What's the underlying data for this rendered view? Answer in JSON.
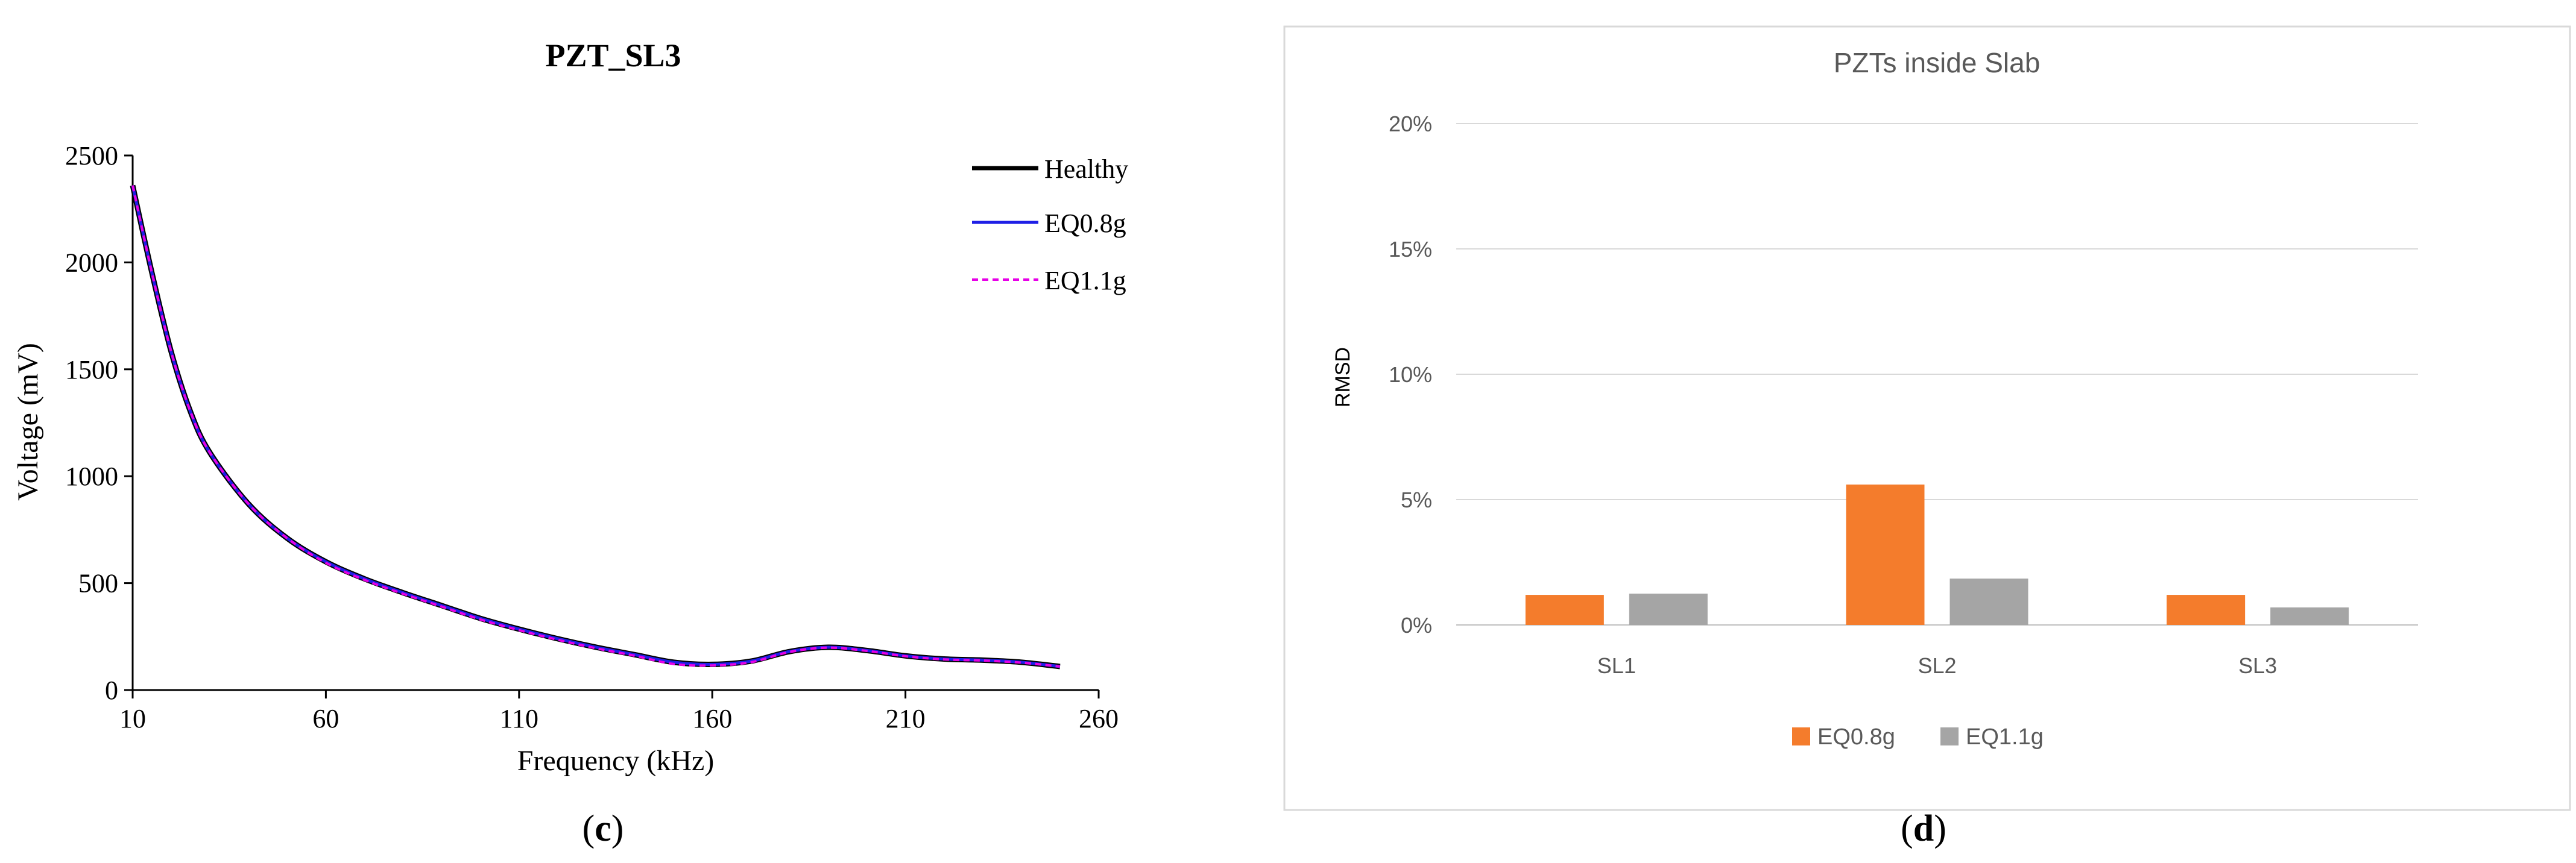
{
  "chart_data": [
    {
      "type": "line",
      "title": "PZT_SL3",
      "xlabel": "Frequency (kHz)",
      "ylabel": "Voltage (mV)",
      "xlim": [
        10,
        260
      ],
      "ylim": [
        0,
        2500
      ],
      "xticks": [
        "10",
        "60",
        "110",
        "160",
        "210",
        "260"
      ],
      "yticks": [
        "0",
        "500",
        "1000",
        "1500",
        "2000",
        "2500"
      ],
      "grid": false,
      "legend_position": "top-right",
      "series": [
        {
          "name": "Healthy",
          "color": "#000000",
          "style": "solid",
          "x": [
            10,
            15,
            20,
            25,
            30,
            40,
            50,
            60,
            70,
            80,
            90,
            100,
            110,
            120,
            130,
            140,
            150,
            160,
            170,
            180,
            190,
            200,
            210,
            220,
            230,
            240,
            250
          ],
          "y": [
            2360,
            1950,
            1580,
            1300,
            1110,
            870,
            710,
            600,
            520,
            455,
            395,
            335,
            285,
            240,
            200,
            165,
            130,
            120,
            135,
            180,
            200,
            185,
            160,
            145,
            140,
            130,
            110
          ]
        },
        {
          "name": "EQ0.8g",
          "color": "#1f1fe6",
          "style": "solid",
          "x": [
            10,
            15,
            20,
            25,
            30,
            40,
            50,
            60,
            70,
            80,
            90,
            100,
            110,
            120,
            130,
            140,
            150,
            160,
            170,
            180,
            190,
            200,
            210,
            220,
            230,
            240,
            250
          ],
          "y": [
            2360,
            1950,
            1580,
            1300,
            1110,
            870,
            710,
            600,
            520,
            455,
            395,
            335,
            285,
            240,
            200,
            165,
            130,
            120,
            135,
            180,
            200,
            185,
            160,
            145,
            140,
            130,
            110
          ]
        },
        {
          "name": "EQ1.1g",
          "color": "#e600e6",
          "style": "dashed",
          "x": [
            10,
            15,
            20,
            25,
            30,
            40,
            50,
            60,
            70,
            80,
            90,
            100,
            110,
            120,
            130,
            140,
            150,
            160,
            170,
            180,
            190,
            200,
            210,
            220,
            230,
            240,
            250
          ],
          "y": [
            2360,
            1950,
            1580,
            1300,
            1110,
            870,
            710,
            595,
            515,
            450,
            390,
            330,
            280,
            235,
            195,
            160,
            122,
            115,
            130,
            178,
            198,
            183,
            158,
            143,
            138,
            128,
            110
          ]
        }
      ]
    },
    {
      "type": "bar",
      "title": "PZTs inside Slab",
      "xlabel": "",
      "ylabel": "RMSD",
      "categories": [
        "SL1",
        "SL2",
        "SL3"
      ],
      "ylim": [
        0,
        20
      ],
      "yticks": [
        "0%",
        "5%",
        "10%",
        "15%",
        "20%"
      ],
      "grid": true,
      "legend_position": "bottom",
      "series": [
        {
          "name": "EQ0.8g",
          "color": "#f47c2c",
          "values": [
            1.2,
            5.6,
            1.2
          ]
        },
        {
          "name": "EQ1.1g",
          "color": "#a5a5a5",
          "values": [
            1.25,
            1.85,
            0.7
          ]
        }
      ]
    }
  ],
  "captions": {
    "left": "c",
    "right": "d"
  }
}
